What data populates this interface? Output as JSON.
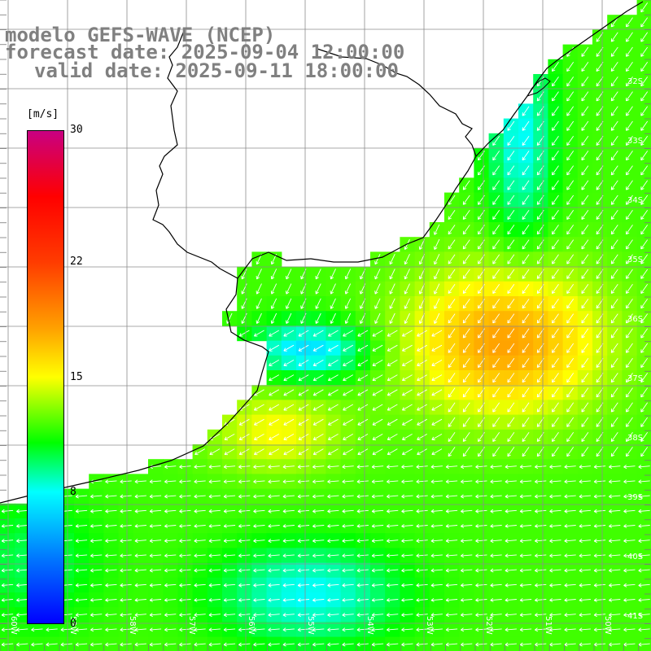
{
  "title": {
    "line1": "modelo GEFS-WAVE (NCEP)",
    "line2": "forecast date: 2025-09-04 12:00:00",
    "line3": "valid date: 2025-09-11 18:00:00"
  },
  "colorbar": {
    "unit": "[m/s]",
    "ticks": [
      "30",
      "22",
      "15",
      "8",
      "0"
    ],
    "min": 0,
    "max": 30
  },
  "lat_labels": [
    "32S",
    "33S",
    "34S",
    "35S",
    "36S",
    "37S",
    "38S",
    "39S",
    "40S",
    "41S"
  ],
  "lon_labels": [
    "60W",
    "59W",
    "58W",
    "57W",
    "56W",
    "55W",
    "54W",
    "53W",
    "52W",
    "51W",
    "50W"
  ],
  "colors": {
    "land": "#ffffff",
    "grid": "#8c8c8c",
    "coast": "#000000",
    "arrow": "#ffffff",
    "title": "#808080"
  },
  "field": {
    "variable": "wind speed",
    "units": "m/s",
    "rows": 26,
    "cols": 36
  }
}
